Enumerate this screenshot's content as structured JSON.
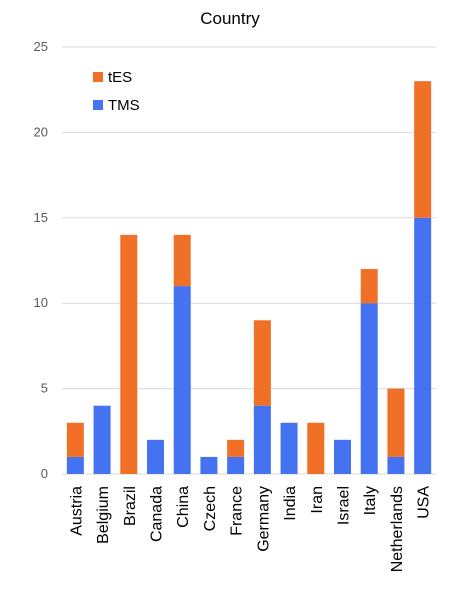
{
  "chart_data": {
    "type": "bar",
    "stacked": true,
    "title": "Country",
    "xlabel": "",
    "ylabel": "",
    "ylim": [
      0,
      25
    ],
    "yticks": [
      0,
      5,
      10,
      15,
      20,
      25
    ],
    "grid": true,
    "legend_placement": "top-left",
    "categories": [
      "Austria",
      "Belgium",
      "Brazil",
      "Canada",
      "China",
      "Czech",
      "France",
      "Germany",
      "India",
      "Iran",
      "Israel",
      "Italy",
      "Netherlands",
      "USA"
    ],
    "series": [
      {
        "name": "TMS",
        "color": "#4472f0",
        "values": [
          1,
          4,
          0,
          2,
          11,
          1,
          1,
          4,
          3,
          0,
          2,
          10,
          1,
          15
        ]
      },
      {
        "name": "tES",
        "color": "#f07028",
        "values": [
          2,
          0,
          14,
          0,
          3,
          0,
          1,
          5,
          0,
          3,
          0,
          2,
          4,
          8
        ]
      }
    ],
    "legend_order": [
      "tES",
      "TMS"
    ]
  }
}
